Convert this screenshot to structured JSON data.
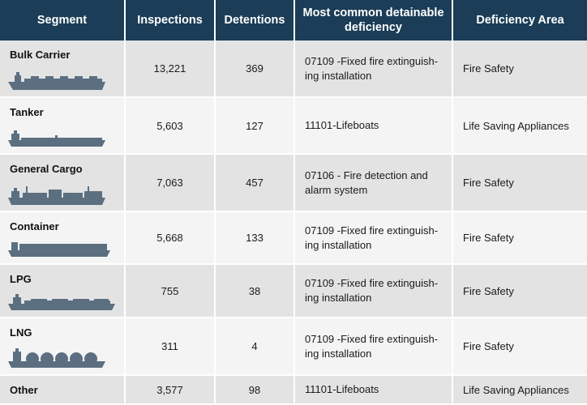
{
  "headers": {
    "segment": "Segment",
    "inspections": "Inspections",
    "detentions": "Detentions",
    "deficiency": "Most common detainable deficiency",
    "area": "Deficiency Area"
  },
  "rows": [
    {
      "segment": "Bulk Carrier",
      "inspections": "13,221",
      "detentions": "369",
      "deficiency_line1": "07109 -Fixed fire extinguish-",
      "deficiency_line2": "ing installation",
      "area": "Fire Safety",
      "icon": "bulk-carrier-ship-icon"
    },
    {
      "segment": "Tanker",
      "inspections": "5,603",
      "detentions": "127",
      "deficiency_line1": "11101-Lifeboats",
      "deficiency_line2": "",
      "area": "Life Saving Appliances",
      "icon": "tanker-ship-icon"
    },
    {
      "segment": "General Cargo",
      "inspections": "7,063",
      "detentions": "457",
      "deficiency_line1": "07106 - Fire detection and",
      "deficiency_line2": "alarm system",
      "area": "Fire Safety",
      "icon": "general-cargo-ship-icon"
    },
    {
      "segment": "Container",
      "inspections": "5,668",
      "detentions": "133",
      "deficiency_line1": "07109 -Fixed fire extinguish-",
      "deficiency_line2": "ing installation",
      "area": "Fire Safety",
      "icon": "container-ship-icon"
    },
    {
      "segment": "LPG",
      "inspections": "755",
      "detentions": "38",
      "deficiency_line1": "07109 -Fixed fire extinguish-",
      "deficiency_line2": "ing installation",
      "area": "Fire Safety",
      "icon": "lpg-ship-icon"
    },
    {
      "segment": "LNG",
      "inspections": "311",
      "detentions": "4",
      "deficiency_line1": "07109 -Fixed fire extinguish-",
      "deficiency_line2": "ing installation",
      "area": "Fire Safety",
      "icon": "lng-ship-icon"
    },
    {
      "segment": "Other",
      "inspections": "3,577",
      "detentions": "98",
      "deficiency_line1": "11101-Lifeboats",
      "deficiency_line2": "",
      "area": "Life Saving Appliances",
      "icon": ""
    }
  ],
  "colors": {
    "header_bg": "#1b3d57",
    "ship_silhouette": "#5b6f80",
    "row_alt": "#e3e3e3",
    "row_plain": "#f4f4f4"
  }
}
